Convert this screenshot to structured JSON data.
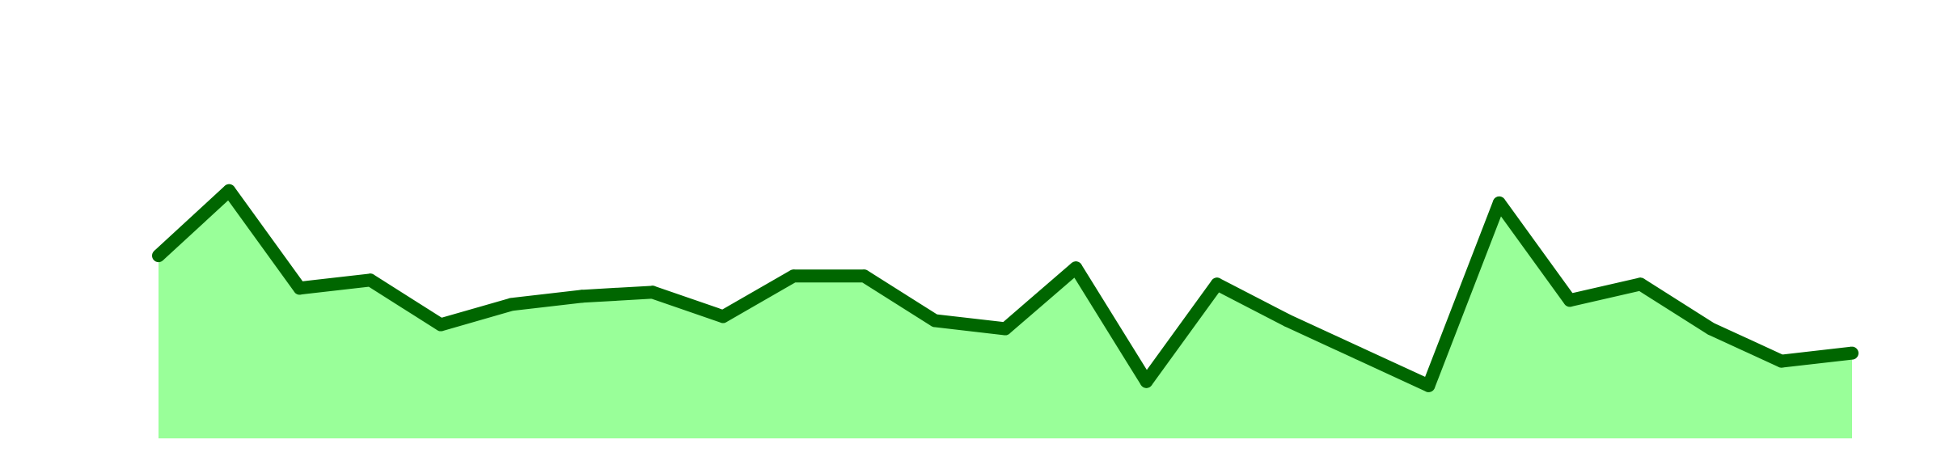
{
  "chart_data": {
    "type": "area",
    "x": [
      1,
      2,
      3,
      4,
      5,
      6,
      7,
      8,
      9,
      10,
      11,
      12,
      13,
      14,
      15,
      16,
      17,
      18,
      19,
      20,
      21,
      22,
      23,
      24,
      25
    ],
    "series": [
      {
        "values": [
          58,
          74,
          50,
          52,
          41,
          46,
          48,
          49,
          43,
          53,
          53,
          42,
          40,
          55,
          27,
          51,
          42,
          34,
          26,
          71,
          47,
          51,
          40,
          32,
          34
        ]
      }
    ],
    "ylim": [
      13,
      117
    ],
    "grid": false,
    "colors": {
      "fill": "#99ff99",
      "line": "#006600"
    }
  }
}
